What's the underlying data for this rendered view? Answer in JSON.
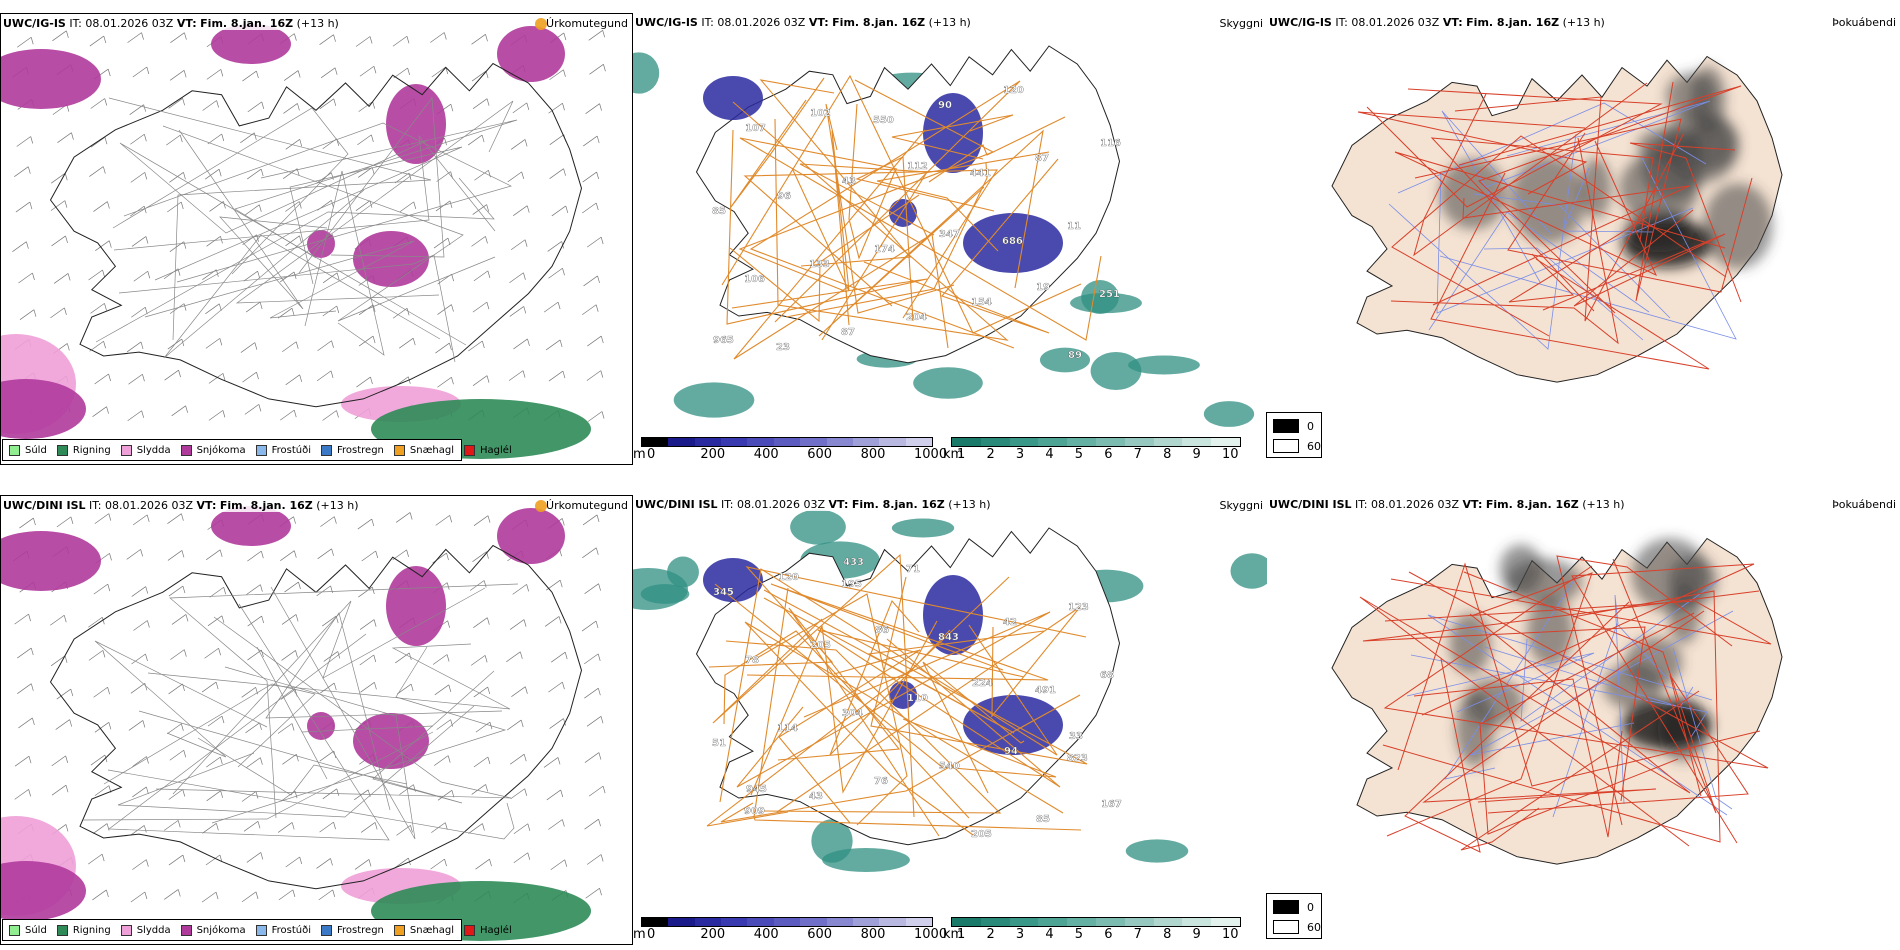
{
  "rows": [
    {
      "precip": {
        "model": "UWC/IG-IS",
        "it_label": "IT:",
        "it": "08.01.2026 03Z",
        "vt_label": "VT:",
        "vt": "Fim. 8.jan. 16Z",
        "lead": "(+13 h)",
        "corner": "Úrkomutegund"
      },
      "visibility": {
        "model": "UWC/IG-IS",
        "it_label": "IT:",
        "it": "08.01.2026 03Z",
        "vt_label": "VT:",
        "vt": "Fim. 8.jan. 16Z",
        "lead": "(+13 h)",
        "corner": "Skyggni",
        "labels": [
          "686",
          "251",
          "23",
          "550",
          "441",
          "11",
          "106",
          "87",
          "90",
          "87",
          "85",
          "133",
          "204",
          "120",
          "116",
          "96",
          "174",
          "154",
          "89",
          "107",
          "43",
          "347",
          "19",
          "965",
          "102",
          "112"
        ]
      },
      "cloud": {
        "model": "UWC/IG-IS",
        "it_label": "IT:",
        "it": "08.01.2026 03Z",
        "vt_label": "VT:",
        "vt": "Fim. 8.jan. 16Z",
        "lead": "(+13 h)",
        "corner": "Þokuábendi"
      }
    },
    {
      "precip": {
        "model": "UWC/DINI ISL",
        "it_label": "IT:",
        "it": "08.01.2026 03Z",
        "vt_label": "VT:",
        "vt": "Fim. 8.jan. 16Z",
        "lead": "(+13 h)",
        "corner": "Úrkomutegund"
      },
      "visibility": {
        "model": "UWC/DINI ISL",
        "it_label": "IT:",
        "it": "08.01.2026 03Z",
        "vt_label": "VT:",
        "vt": "Fim. 8.jan. 16Z",
        "lead": "(+13 h)",
        "corner": "Skyggni",
        "labels": [
          "823",
          "909",
          "195",
          "843",
          "491",
          "51",
          "43",
          "71",
          "42",
          "68",
          "114",
          "76",
          "205",
          "123",
          "78",
          "304",
          "540",
          "85",
          "345",
          "205",
          "110",
          "94",
          "167",
          "120",
          "86",
          "224",
          "33",
          "945",
          "433"
        ]
      },
      "cloud": {
        "model": "UWC/DINI ISL",
        "it_label": "IT:",
        "it": "08.01.2026 03Z",
        "vt_label": "VT:",
        "vt": "Fim. 8.jan. 16Z",
        "lead": "(+13 h)",
        "corner": "Þokuábendi"
      }
    }
  ],
  "precip_legend": [
    {
      "label": "Súld",
      "color": "#90ee90"
    },
    {
      "label": "Rigning",
      "color": "#2e8b57"
    },
    {
      "label": "Slydda",
      "color": "#f0a0d8"
    },
    {
      "label": "Snjókoma",
      "color": "#b03a9c"
    },
    {
      "label": "Frostúði",
      "color": "#8ab8ea"
    },
    {
      "label": "Frostregn",
      "color": "#3a78c8"
    },
    {
      "label": "Snæhagl",
      "color": "#f0a020"
    },
    {
      "label": "Haglél",
      "color": "#e01818"
    }
  ],
  "visibility_colorbars": {
    "elevation": {
      "unit": "m",
      "ticks": [
        "0",
        "200",
        "400",
        "600",
        "800",
        "1000"
      ],
      "colors": [
        "#000000",
        "#1a1a8a",
        "#2a2aa0",
        "#3a3ab0",
        "#4a4ab8",
        "#5c5cc0",
        "#7070c8",
        "#8888d0",
        "#a0a0d8",
        "#b8b8e0",
        "#d0d0ec"
      ]
    },
    "visibility_km": {
      "unit": "km",
      "ticks": [
        "1",
        "2",
        "3",
        "4",
        "5",
        "6",
        "7",
        "8",
        "9",
        "10"
      ],
      "colors": [
        "#1a7a6a",
        "#2a8a7a",
        "#3a9888",
        "#4ea494",
        "#64b0a2",
        "#7cbcb0",
        "#96c8c0",
        "#b0d6ce",
        "#cae4de",
        "#e4f2ee"
      ]
    }
  },
  "cloud_legend": {
    "dark_label": "0",
    "light_label": "60",
    "dark_color": "#000000",
    "light_color": "#ffffff"
  },
  "colors": {
    "snow": "#b03a9c",
    "sleet": "#f0a0d8",
    "rain": "#2e8b57",
    "ice_pellets": "#f0a020",
    "vis_teal": "#2f8f82",
    "vis_blue": "#2a2aa0",
    "road_orange": "#e08a2c",
    "land_beige": "#f4e2d2",
    "road_red": "#d8402a",
    "river_blue": "#7a8ee8"
  }
}
